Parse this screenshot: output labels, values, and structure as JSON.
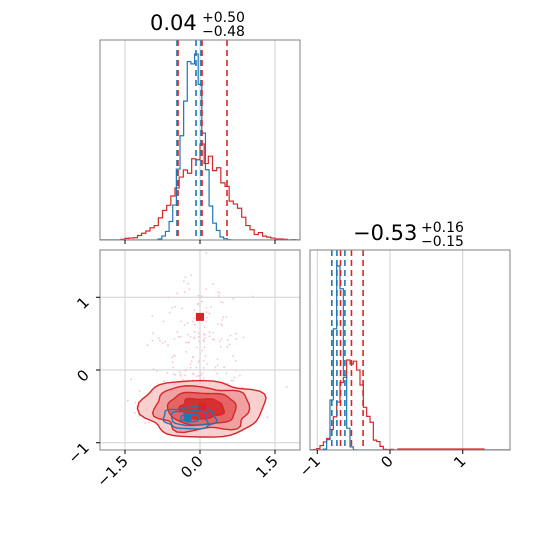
{
  "colors": {
    "series_a": "#d62728",
    "series_b": "#1f77b4",
    "grid": "#d0d0d0",
    "frame": "#808080",
    "scatter": "#f2c6d8"
  },
  "chart_data": [
    {
      "panel": "top-left",
      "type": "histogram",
      "title": {
        "value": "0.04",
        "upper": "+0.50",
        "lower": "−0.48"
      },
      "xlim": [
        -2.0,
        2.0
      ],
      "ticks": [
        -1.5,
        0.0,
        1.5
      ],
      "grid": true,
      "series": [
        {
          "color": "series_a",
          "quantiles": [
            -0.44,
            0.04,
            0.54
          ]
        },
        {
          "color": "series_b",
          "quantiles": [
            -0.46,
            -0.08,
            0.02
          ]
        }
      ]
    },
    {
      "panel": "bottom-right",
      "type": "histogram",
      "title": {
        "value": "−0.53",
        "upper": "+0.16",
        "lower": "−0.15"
      },
      "xlim": [
        -1.1,
        1.65
      ],
      "ticks": [
        -1,
        0,
        1
      ],
      "tick_labels": [
        "−1",
        "0",
        "1"
      ],
      "grid": true,
      "series": [
        {
          "color": "series_a",
          "quantiles": [
            -0.68,
            -0.53,
            -0.37
          ]
        },
        {
          "color": "series_b",
          "quantiles": [
            -0.8,
            -0.73,
            -0.62
          ]
        }
      ]
    },
    {
      "panel": "bottom-left",
      "type": "contour",
      "xlim": [
        -2.0,
        2.0
      ],
      "ylim": [
        -1.1,
        1.65
      ],
      "xticks": [
        -1.5,
        0.0,
        1.5
      ],
      "xtick_labels": [
        "−1.5",
        "0.0",
        "1.5"
      ],
      "yticks": [
        -1,
        0,
        1
      ],
      "ytick_labels": [
        "−1",
        "0",
        "1"
      ],
      "grid": true,
      "markers": [
        {
          "x": 0.0,
          "y": 0.73,
          "color": "series_a"
        },
        {
          "x": 0.05,
          "y": -0.5,
          "color": "series_a"
        },
        {
          "x": -0.25,
          "y": -0.65,
          "color": "series_b"
        }
      ],
      "contours": [
        {
          "color": "series_a",
          "center": [
            0.04,
            -0.53
          ],
          "sigma": [
            0.5,
            0.16
          ],
          "levels": [
            1.0,
            1.6,
            2.2,
            2.8
          ]
        },
        {
          "color": "series_b",
          "center": [
            -0.2,
            -0.66
          ],
          "sigma": [
            0.22,
            0.06
          ],
          "levels": [
            1.0,
            2.0,
            2.8
          ]
        }
      ]
    }
  ]
}
